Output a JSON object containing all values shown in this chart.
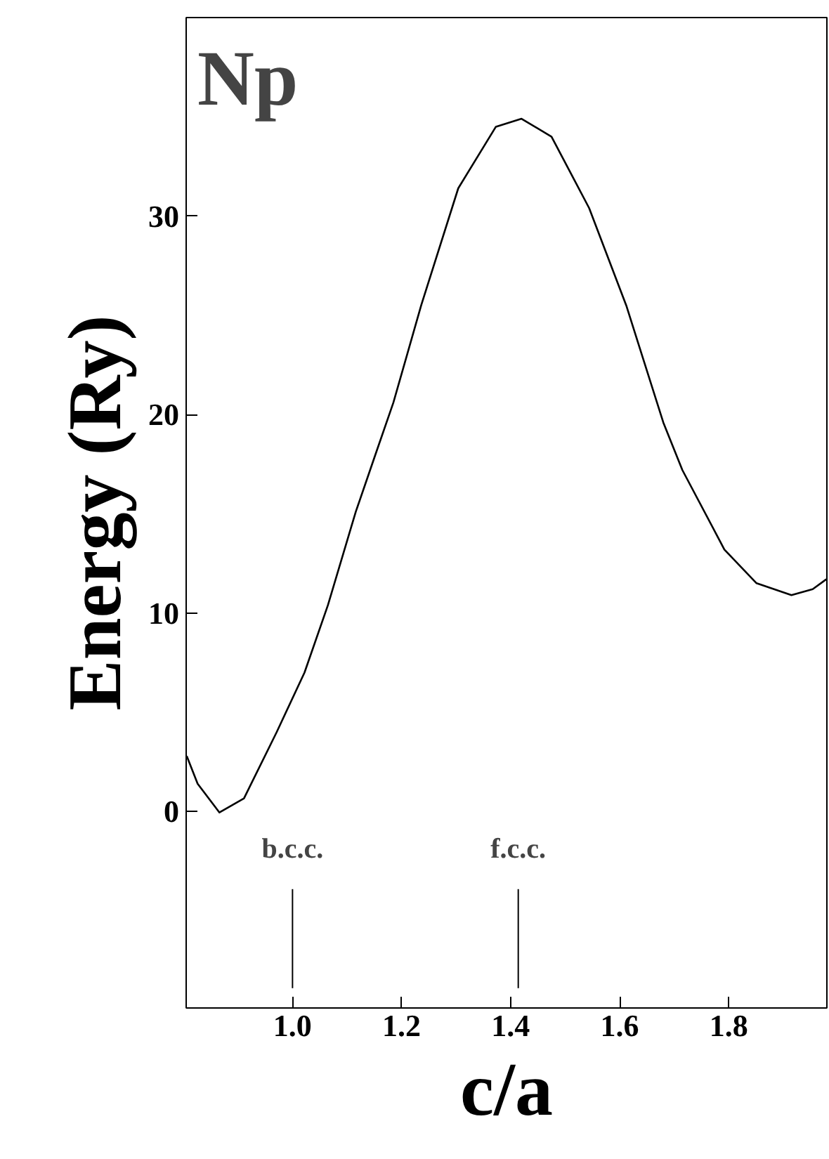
{
  "chart_data": {
    "type": "line",
    "title": "Np",
    "xlabel": "c/a",
    "ylabel": "Energy (Ry)",
    "x": [
      0.806,
      0.826,
      0.866,
      0.911,
      0.971,
      1.022,
      1.065,
      1.116,
      1.151,
      1.185,
      1.236,
      1.304,
      1.373,
      1.42,
      1.475,
      1.544,
      1.612,
      1.68,
      1.715,
      1.792,
      1.851,
      1.915,
      1.954,
      1.979
    ],
    "series": [
      {
        "color": "#000000",
        "values": [
          2.8,
          1.4,
          -0.05,
          0.66,
          4.0,
          7.0,
          10.4,
          15.1,
          17.9,
          20.6,
          25.5,
          31.4,
          34.5,
          34.9,
          34.0,
          30.4,
          25.5,
          19.6,
          17.2,
          13.2,
          11.5,
          10.9,
          11.2,
          11.7
        ]
      }
    ],
    "xlim": [
      0.805,
      1.98
    ],
    "ylim": [
      -9.9,
      40
    ],
    "xticks": [
      {
        "value": 1.0,
        "label": "1.0"
      },
      1.2,
      1.4,
      1.6,
      1.8
    ],
    "yticks": [
      0,
      10,
      20,
      30
    ],
    "ref_lines": [
      {
        "axis": "x",
        "value": 1.0,
        "label": "b.c.c."
      },
      {
        "axis": "x",
        "value": 1.414,
        "label": "f.c.c."
      }
    ],
    "grid": false,
    "marker": "none",
    "line_style": "solid"
  }
}
